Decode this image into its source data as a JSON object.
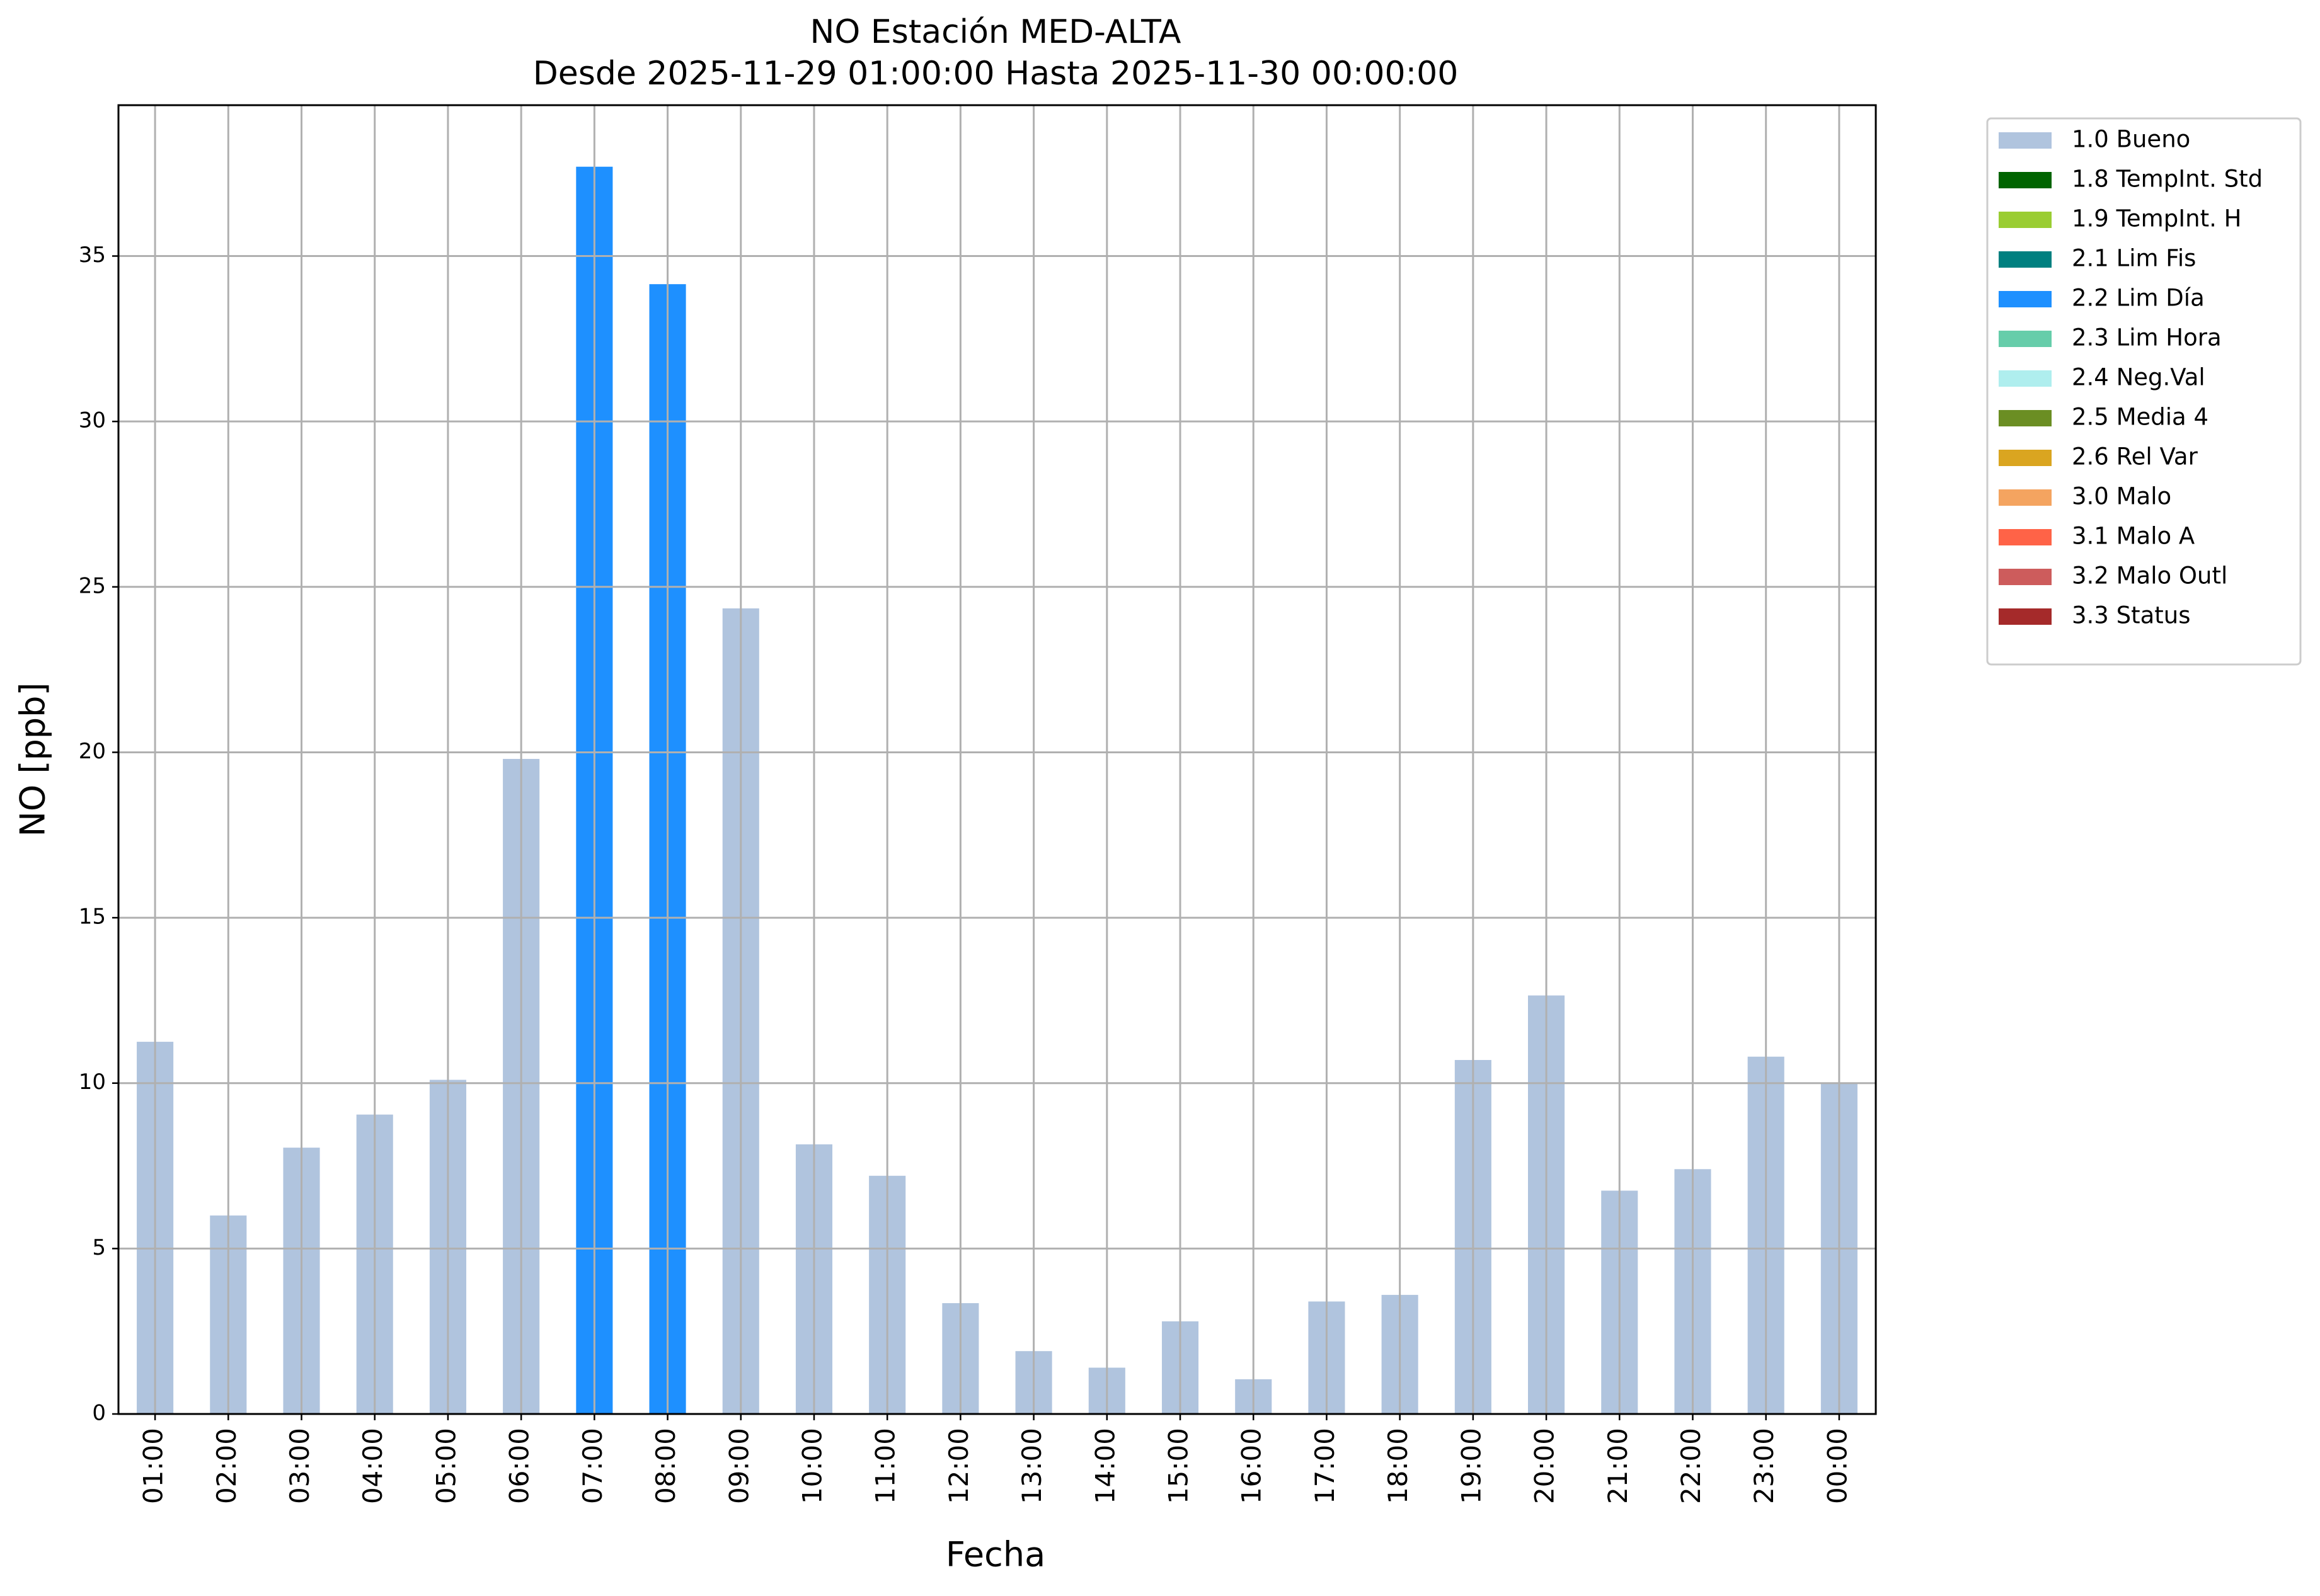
{
  "chart_data": {
    "type": "bar",
    "title": "NO Estación MED-ALTA",
    "subtitle": "Desde 2025-11-29 01:00:00 Hasta 2025-11-30 00:00:00",
    "x_label": "Fecha",
    "y_label": "NO [ppb]",
    "categories": [
      "01:00",
      "02:00",
      "03:00",
      "04:00",
      "05:00",
      "06:00",
      "07:00",
      "08:00",
      "09:00",
      "10:00",
      "11:00",
      "12:00",
      "13:00",
      "14:00",
      "15:00",
      "16:00",
      "17:00",
      "18:00",
      "19:00",
      "20:00",
      "21:00",
      "22:00",
      "23:00",
      "00:00"
    ],
    "series": [
      {
        "name": "1.0 Bueno",
        "color": "#b0c4de",
        "values": [
          11.25,
          6.0,
          8.05,
          9.05,
          10.1,
          19.8,
          null,
          null,
          24.35,
          8.15,
          7.2,
          3.35,
          1.9,
          1.4,
          2.8,
          1.05,
          3.4,
          3.6,
          10.7,
          12.65,
          6.75,
          7.4,
          10.8,
          10.0
        ]
      },
      {
        "name": "1.8 TempInt. Std",
        "color": "#006400",
        "values": [
          null,
          null,
          null,
          null,
          null,
          null,
          null,
          null,
          null,
          null,
          null,
          null,
          null,
          null,
          null,
          null,
          null,
          null,
          null,
          null,
          null,
          null,
          null,
          null
        ]
      },
      {
        "name": "1.9 TempInt. H",
        "color": "#9acd32",
        "values": [
          null,
          null,
          null,
          null,
          null,
          null,
          null,
          null,
          null,
          null,
          null,
          null,
          null,
          null,
          null,
          null,
          null,
          null,
          null,
          null,
          null,
          null,
          null,
          null
        ]
      },
      {
        "name": "2.1 Lim Fis",
        "color": "#008080",
        "values": [
          null,
          null,
          null,
          null,
          null,
          null,
          null,
          null,
          null,
          null,
          null,
          null,
          null,
          null,
          null,
          null,
          null,
          null,
          null,
          null,
          null,
          null,
          null,
          null
        ]
      },
      {
        "name": "2.2 Lim Día",
        "color": "#1e90ff",
        "values": [
          null,
          null,
          null,
          null,
          null,
          null,
          37.7,
          34.15,
          null,
          null,
          null,
          null,
          null,
          null,
          null,
          null,
          null,
          null,
          null,
          null,
          null,
          null,
          null,
          null
        ]
      },
      {
        "name": "2.3 Lim Hora",
        "color": "#66cdaa",
        "values": [
          null,
          null,
          null,
          null,
          null,
          null,
          null,
          null,
          null,
          null,
          null,
          null,
          null,
          null,
          null,
          null,
          null,
          null,
          null,
          null,
          null,
          null,
          null,
          null
        ]
      },
      {
        "name": "2.4 Neg.Val",
        "color": "#afeeee",
        "values": [
          null,
          null,
          null,
          null,
          null,
          null,
          null,
          null,
          null,
          null,
          null,
          null,
          null,
          null,
          null,
          null,
          null,
          null,
          null,
          null,
          null,
          null,
          null,
          null
        ]
      },
      {
        "name": "2.5 Media 4",
        "color": "#6b8e23",
        "values": [
          null,
          null,
          null,
          null,
          null,
          null,
          null,
          null,
          null,
          null,
          null,
          null,
          null,
          null,
          null,
          null,
          null,
          null,
          null,
          null,
          null,
          null,
          null,
          null
        ]
      },
      {
        "name": "2.6 Rel Var",
        "color": "#daa520",
        "values": [
          null,
          null,
          null,
          null,
          null,
          null,
          null,
          null,
          null,
          null,
          null,
          null,
          null,
          null,
          null,
          null,
          null,
          null,
          null,
          null,
          null,
          null,
          null,
          null
        ]
      },
      {
        "name": "3.0 Malo",
        "color": "#f4a460",
        "values": [
          null,
          null,
          null,
          null,
          null,
          null,
          null,
          null,
          null,
          null,
          null,
          null,
          null,
          null,
          null,
          null,
          null,
          null,
          null,
          null,
          null,
          null,
          null,
          null
        ]
      },
      {
        "name": "3.1 Malo A",
        "color": "#ff6347",
        "values": [
          null,
          null,
          null,
          null,
          null,
          null,
          null,
          null,
          null,
          null,
          null,
          null,
          null,
          null,
          null,
          null,
          null,
          null,
          null,
          null,
          null,
          null,
          null,
          null
        ]
      },
      {
        "name": "3.2 Malo Outl",
        "color": "#cd5c5c",
        "values": [
          null,
          null,
          null,
          null,
          null,
          null,
          null,
          null,
          null,
          null,
          null,
          null,
          null,
          null,
          null,
          null,
          null,
          null,
          null,
          null,
          null,
          null,
          null,
          null
        ]
      },
      {
        "name": "3.3 Status",
        "color": "#a52a2a",
        "values": [
          null,
          null,
          null,
          null,
          null,
          null,
          null,
          null,
          null,
          null,
          null,
          null,
          null,
          null,
          null,
          null,
          null,
          null,
          null,
          null,
          null,
          null,
          null,
          null
        ]
      }
    ],
    "ylim": [
      0,
      39.56
    ],
    "yticks": [
      0,
      5,
      10,
      15,
      20,
      25,
      30,
      35
    ],
    "grid": true,
    "legend": "outside-right"
  }
}
